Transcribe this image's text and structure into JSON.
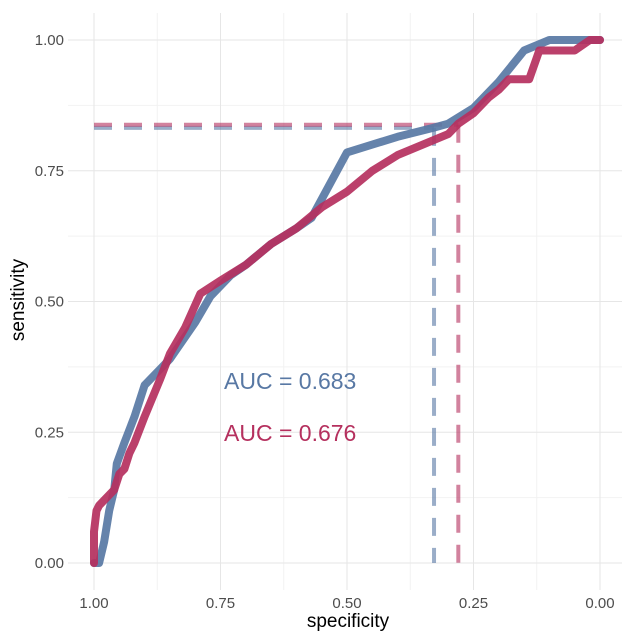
{
  "chart_data": {
    "type": "line",
    "title": "",
    "xlabel": "specificity",
    "ylabel": "sensitivity",
    "x_reversed": true,
    "xlim": [
      1.0,
      0.0
    ],
    "ylim": [
      0.0,
      1.0
    ],
    "x_ticks": [
      "1.00",
      "0.75",
      "0.50",
      "0.25",
      "0.00"
    ],
    "x_tick_values": [
      1.0,
      0.75,
      0.5,
      0.25,
      0.0
    ],
    "y_ticks": [
      "0.00",
      "0.25",
      "0.50",
      "0.75",
      "1.00"
    ],
    "y_tick_values": [
      0.0,
      0.25,
      0.5,
      0.75,
      1.0
    ],
    "grid": true,
    "series": [
      {
        "color": "#5878a4",
        "auc_label": "AUC = 0.683",
        "best_threshold": {
          "specificity": 0.328,
          "sensitivity": 0.832
        },
        "points": [
          [
            1.0,
            0.0
          ],
          [
            0.99,
            0.0
          ],
          [
            0.98,
            0.04
          ],
          [
            0.97,
            0.1
          ],
          [
            0.96,
            0.14
          ],
          [
            0.955,
            0.19
          ],
          [
            0.94,
            0.23
          ],
          [
            0.92,
            0.28
          ],
          [
            0.9,
            0.34
          ],
          [
            0.87,
            0.37
          ],
          [
            0.85,
            0.39
          ],
          [
            0.8,
            0.46
          ],
          [
            0.77,
            0.51
          ],
          [
            0.73,
            0.55
          ],
          [
            0.7,
            0.57
          ],
          [
            0.65,
            0.61
          ],
          [
            0.6,
            0.64
          ],
          [
            0.57,
            0.66
          ],
          [
            0.5,
            0.785
          ],
          [
            0.45,
            0.8
          ],
          [
            0.4,
            0.815
          ],
          [
            0.33,
            0.832
          ],
          [
            0.3,
            0.84
          ],
          [
            0.25,
            0.87
          ],
          [
            0.2,
            0.92
          ],
          [
            0.15,
            0.98
          ],
          [
            0.1,
            1.0
          ],
          [
            0.0,
            1.0
          ]
        ]
      },
      {
        "color": "#b5305e",
        "auc_label": "AUC = 0.676",
        "best_threshold": {
          "specificity": 0.28,
          "sensitivity": 0.838
        },
        "points": [
          [
            1.0,
            0.0
          ],
          [
            1.0,
            0.06
          ],
          [
            0.995,
            0.1
          ],
          [
            0.99,
            0.11
          ],
          [
            0.98,
            0.12
          ],
          [
            0.96,
            0.14
          ],
          [
            0.95,
            0.17
          ],
          [
            0.94,
            0.18
          ],
          [
            0.93,
            0.21
          ],
          [
            0.92,
            0.23
          ],
          [
            0.9,
            0.28
          ],
          [
            0.87,
            0.35
          ],
          [
            0.85,
            0.4
          ],
          [
            0.82,
            0.45
          ],
          [
            0.79,
            0.515
          ],
          [
            0.75,
            0.54
          ],
          [
            0.7,
            0.57
          ],
          [
            0.65,
            0.61
          ],
          [
            0.6,
            0.64
          ],
          [
            0.55,
            0.68
          ],
          [
            0.5,
            0.71
          ],
          [
            0.45,
            0.75
          ],
          [
            0.4,
            0.78
          ],
          [
            0.35,
            0.8
          ],
          [
            0.3,
            0.82
          ],
          [
            0.28,
            0.84
          ],
          [
            0.25,
            0.86
          ],
          [
            0.22,
            0.89
          ],
          [
            0.2,
            0.905
          ],
          [
            0.18,
            0.925
          ],
          [
            0.14,
            0.925
          ],
          [
            0.12,
            0.98
          ],
          [
            0.05,
            0.98
          ],
          [
            0.02,
            1.0
          ],
          [
            0.0,
            1.0
          ]
        ]
      }
    ]
  }
}
